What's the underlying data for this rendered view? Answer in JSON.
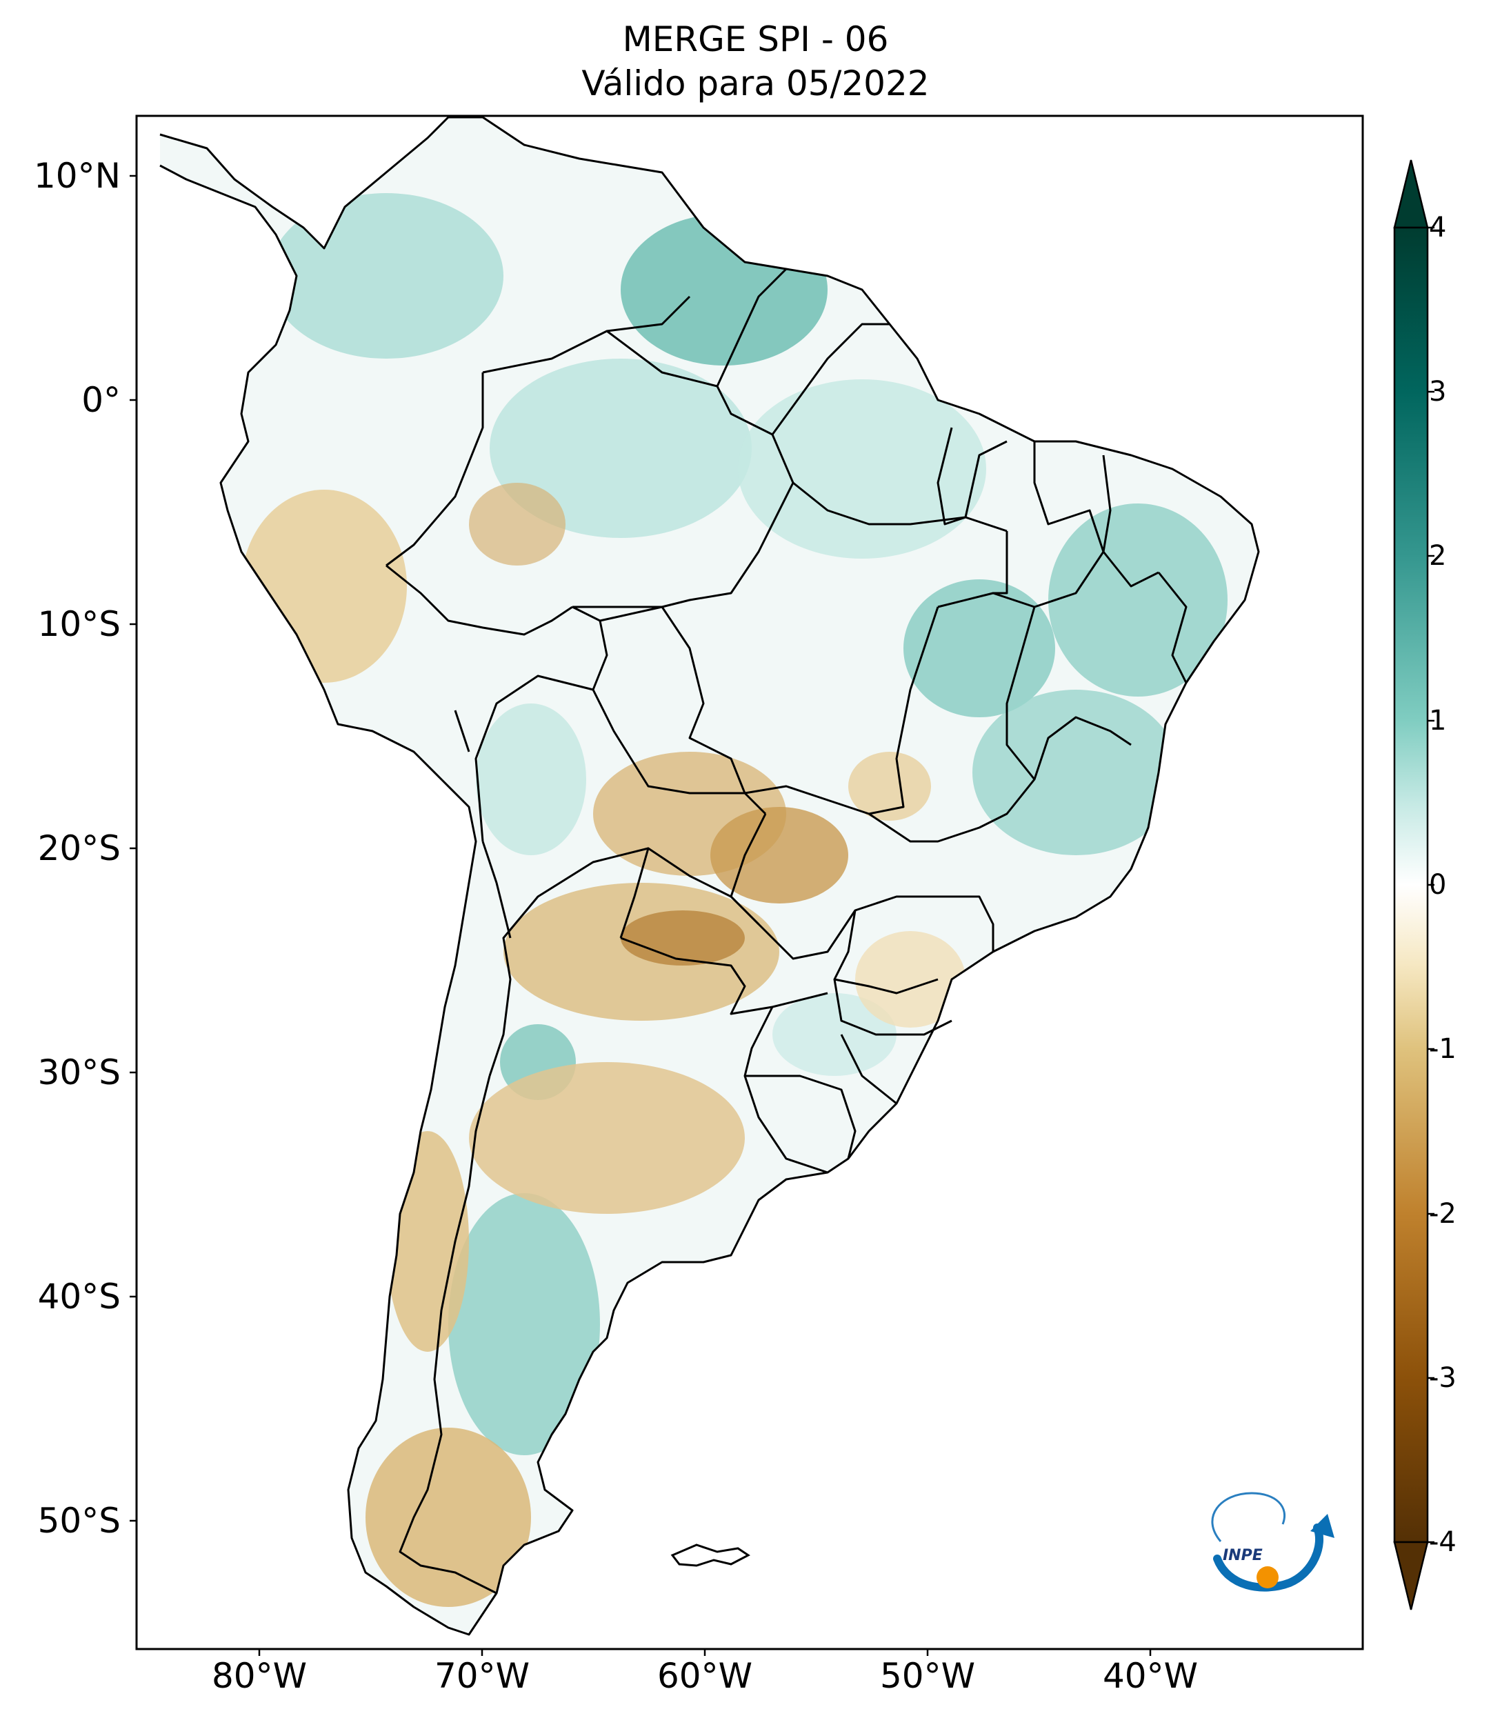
{
  "title": {
    "line1": "MERGE   SPI - 06",
    "line2": "Válido para 05/2022"
  },
  "map": {
    "lat_labels": [
      "10°N",
      "0°",
      "10°S",
      "20°S",
      "30°S",
      "40°S",
      "50°S"
    ],
    "lon_labels": [
      "80°W",
      "70°W",
      "60°W",
      "50°W",
      "40°W"
    ],
    "logo_text": "INPE"
  },
  "colorbar": {
    "ticks": [
      "4",
      "3",
      "2",
      "1",
      "0",
      "-1",
      "-2",
      "-3",
      "-4"
    ],
    "min": -4,
    "max": 4,
    "extend": "both",
    "colors": [
      "#543005",
      "#8c510a",
      "#bf812d",
      "#dfc27d",
      "#f6e8c3",
      "#ffffff",
      "#c7eae5",
      "#80cdc1",
      "#35978f",
      "#01665e",
      "#003c30"
    ]
  }
}
